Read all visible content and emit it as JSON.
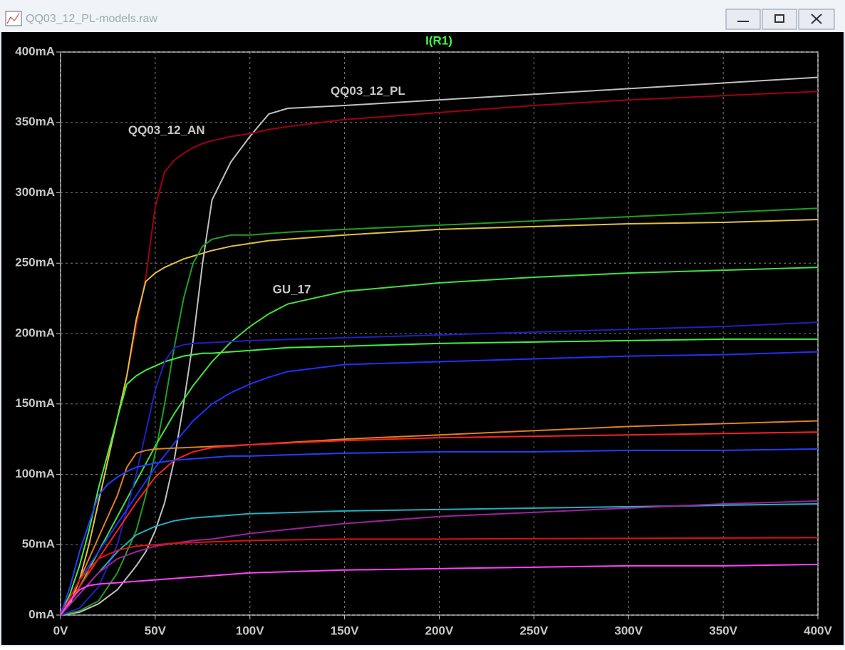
{
  "window": {
    "title": "QQ03_12_PL-models.raw"
  },
  "chart_data": {
    "type": "line",
    "title": "I(R1)",
    "grid": true,
    "xlim": [
      0,
      400
    ],
    "ylim": [
      0,
      400
    ],
    "xticks": [
      {
        "value": 0,
        "label": "0V"
      },
      {
        "value": 50,
        "label": "50V"
      },
      {
        "value": 100,
        "label": "100V"
      },
      {
        "value": 150,
        "label": "150V"
      },
      {
        "value": 200,
        "label": "200V"
      },
      {
        "value": 250,
        "label": "250V"
      },
      {
        "value": 300,
        "label": "300V"
      },
      {
        "value": 350,
        "label": "350V"
      },
      {
        "value": 400,
        "label": "400V"
      }
    ],
    "yticks": [
      {
        "value": 0,
        "label": "0mA"
      },
      {
        "value": 50,
        "label": "50mA"
      },
      {
        "value": 100,
        "label": "100mA"
      },
      {
        "value": 150,
        "label": "150mA"
      },
      {
        "value": 200,
        "label": "200mA"
      },
      {
        "value": 250,
        "label": "250mA"
      },
      {
        "value": 300,
        "label": "300mA"
      },
      {
        "value": 350,
        "label": "350mA"
      },
      {
        "value": 400,
        "label": "400mA"
      }
    ],
    "annotations": [
      {
        "text": "QQ03_12_PL",
        "x": 142.6,
        "y": 372
      },
      {
        "text": "QQ03_12_AN",
        "x": 35.7,
        "y": 344
      },
      {
        "text": "GU_17",
        "x": 112,
        "y": 231
      }
    ],
    "series": [
      {
        "color": "#c0c0c0",
        "x": [
          0,
          10,
          20,
          30,
          40,
          45,
          50,
          55,
          60,
          65,
          70,
          75,
          80,
          90,
          100,
          110,
          120,
          150,
          200,
          250,
          300,
          350,
          400
        ],
        "values": [
          0,
          2,
          8,
          18,
          35,
          45,
          60,
          80,
          110,
          150,
          195,
          250,
          295,
          322,
          340,
          356,
          360,
          362,
          366,
          370,
          374,
          378,
          382
        ]
      },
      {
        "color": "#a00010",
        "x": [
          0,
          5,
          10,
          15,
          20,
          25,
          30,
          35,
          40,
          45,
          50,
          55,
          60,
          65,
          70,
          75,
          80,
          90,
          100,
          110,
          120,
          150,
          200,
          250,
          300,
          350,
          400
        ],
        "values": [
          0,
          8,
          25,
          50,
          80,
          110,
          140,
          170,
          205,
          240,
          290,
          315,
          323,
          328,
          332,
          335,
          337,
          340,
          342,
          345,
          347,
          352,
          357,
          362,
          366,
          369,
          372
        ]
      },
      {
        "color": "#e0c040",
        "x": [
          0,
          5,
          10,
          15,
          20,
          25,
          30,
          35,
          40,
          45,
          50,
          55,
          60,
          65,
          70,
          75,
          80,
          90,
          100,
          110,
          120,
          150,
          200,
          250,
          300,
          350,
          400
        ],
        "values": [
          0,
          8,
          25,
          50,
          80,
          110,
          140,
          170,
          210,
          237,
          243,
          247,
          250,
          253,
          255,
          257,
          259,
          262,
          264,
          266,
          267,
          270,
          274,
          276,
          278,
          279,
          281
        ]
      },
      {
        "color": "#20a020",
        "x": [
          0,
          10,
          20,
          30,
          40,
          45,
          50,
          55,
          60,
          65,
          70,
          75,
          80,
          90,
          100,
          110,
          120,
          150,
          200,
          250,
          300,
          350,
          400
        ],
        "values": [
          0,
          3,
          10,
          30,
          60,
          85,
          115,
          150,
          190,
          225,
          250,
          262,
          267,
          270,
          270,
          271,
          272,
          274,
          277,
          280,
          283,
          286,
          289
        ]
      },
      {
        "color": "#40e040",
        "x": [
          0,
          10,
          20,
          30,
          40,
          50,
          60,
          70,
          80,
          90,
          100,
          110,
          120,
          150,
          200,
          250,
          300,
          350,
          400
        ],
        "values": [
          0,
          20,
          45,
          70,
          95,
          120,
          143,
          163,
          180,
          194,
          205,
          214,
          221,
          230,
          236,
          240,
          243,
          245,
          247
        ]
      },
      {
        "color": "#40f040",
        "x": [
          0,
          5,
          10,
          15,
          20,
          25,
          30,
          35,
          40,
          45,
          50,
          55,
          60,
          65,
          70,
          75,
          80,
          90,
          100,
          110,
          120,
          150,
          200,
          250,
          300,
          350,
          400
        ],
        "values": [
          0,
          15,
          35,
          60,
          90,
          115,
          140,
          164,
          170,
          174,
          177,
          180,
          182,
          184,
          185,
          186,
          186,
          187,
          188,
          189,
          190,
          191,
          193,
          194,
          195,
          196,
          196
        ]
      },
      {
        "color": "#2020c0",
        "x": [
          0,
          10,
          20,
          30,
          40,
          45,
          50,
          55,
          60,
          65,
          70,
          100,
          150,
          200,
          250,
          300,
          350,
          400
        ],
        "values": [
          0,
          5,
          20,
          50,
          100,
          130,
          160,
          180,
          190,
          192,
          193,
          195,
          197,
          199,
          201,
          203,
          205,
          208
        ]
      },
      {
        "color": "#2030ff",
        "x": [
          0,
          10,
          20,
          30,
          40,
          50,
          60,
          70,
          80,
          90,
          100,
          110,
          120,
          150,
          200,
          250,
          300,
          350,
          400
        ],
        "values": [
          0,
          25,
          45,
          65,
          85,
          105,
          122,
          138,
          150,
          158,
          164,
          169,
          173,
          178,
          180,
          182,
          184,
          185,
          187
        ]
      },
      {
        "color": "#e08020",
        "x": [
          0,
          10,
          20,
          30,
          35,
          40,
          45,
          50,
          100,
          150,
          200,
          250,
          300,
          350,
          400
        ],
        "values": [
          0,
          25,
          55,
          85,
          105,
          115,
          117,
          118,
          121,
          125,
          128,
          131,
          134,
          136,
          138
        ]
      },
      {
        "color": "#ff2020",
        "x": [
          0,
          10,
          20,
          30,
          40,
          50,
          60,
          70,
          80,
          90,
          100,
          150,
          200,
          250,
          300,
          350,
          400
        ],
        "values": [
          0,
          20,
          40,
          60,
          80,
          98,
          110,
          116,
          119,
          120,
          121,
          124,
          126,
          127,
          128,
          129,
          130
        ]
      },
      {
        "color": "#2040ff",
        "x": [
          0,
          5,
          10,
          15,
          20,
          25,
          30,
          35,
          40,
          50,
          60,
          70,
          80,
          90,
          100,
          150,
          200,
          250,
          300,
          350,
          400
        ],
        "values": [
          0,
          20,
          45,
          65,
          85,
          93,
          98,
          102,
          105,
          108,
          110,
          111,
          112,
          113,
          113,
          115,
          116,
          116,
          117,
          117,
          118
        ]
      },
      {
        "color": "#20b0c0",
        "x": [
          0,
          10,
          20,
          30,
          40,
          50,
          60,
          70,
          80,
          90,
          100,
          150,
          200,
          250,
          300,
          350,
          400
        ],
        "values": [
          0,
          15,
          30,
          45,
          57,
          63,
          67,
          69,
          70,
          71,
          72,
          74,
          75,
          76,
          77,
          78,
          79
        ]
      },
      {
        "color": "#a020a0",
        "x": [
          0,
          10,
          20,
          30,
          40,
          50,
          60,
          70,
          80,
          90,
          100,
          150,
          200,
          250,
          300,
          350,
          400
        ],
        "values": [
          0,
          15,
          30,
          40,
          45,
          49,
          51,
          53,
          54,
          56,
          58,
          65,
          70,
          73,
          76,
          79,
          81
        ]
      },
      {
        "color": "#e01010",
        "x": [
          0,
          10,
          20,
          30,
          40,
          50,
          60,
          80,
          100,
          150,
          200,
          400
        ],
        "values": [
          0,
          25,
          40,
          46,
          49,
          50,
          51,
          52,
          53,
          54,
          54,
          55
        ]
      },
      {
        "color": "#ff40ff",
        "x": [
          0,
          5,
          10,
          15,
          20,
          30,
          40,
          50,
          60,
          70,
          80,
          90,
          100,
          150,
          200,
          250,
          300,
          350,
          400
        ],
        "values": [
          0,
          10,
          18,
          21,
          22,
          23,
          24,
          25,
          26,
          27,
          28,
          29,
          30,
          32,
          33,
          34,
          35,
          35,
          36
        ]
      }
    ]
  }
}
